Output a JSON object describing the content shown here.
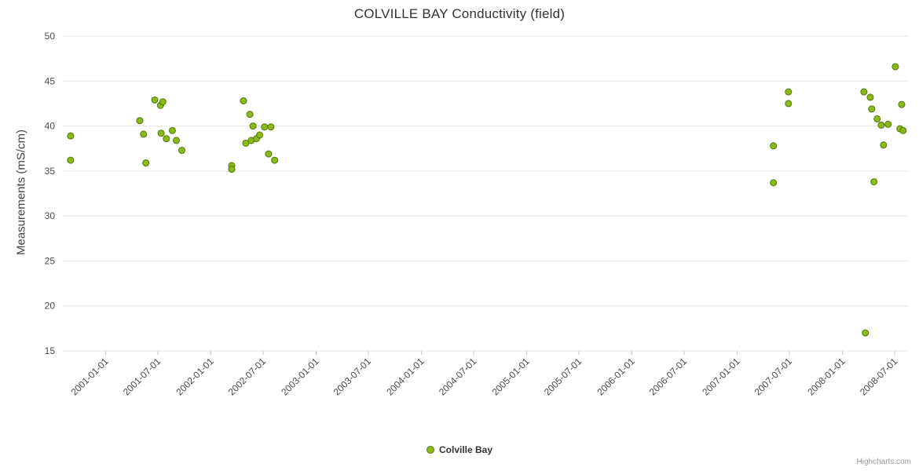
{
  "chart": {
    "credits": "Highcharts.com"
  },
  "legend": {
    "items": [
      {
        "label": "Colville Bay",
        "color": "#8aba17",
        "border": "#55770a"
      }
    ]
  },
  "chart_data": {
    "type": "scatter",
    "title": "COLVILLE BAY Conductivity (field)",
    "xlabel": "",
    "ylabel": "Measurements (mS/cm)",
    "xlim": [
      "2000-08-05",
      "2008-08-16"
    ],
    "ylim": [
      15,
      50
    ],
    "yticks": [
      15,
      20,
      25,
      30,
      35,
      40,
      45,
      50
    ],
    "xticks": [
      "2001-01-01",
      "2001-07-01",
      "2002-01-01",
      "2002-07-01",
      "2003-01-01",
      "2003-07-01",
      "2004-01-01",
      "2004-07-01",
      "2005-01-01",
      "2005-07-01",
      "2006-01-01",
      "2006-07-01",
      "2007-01-01",
      "2007-07-01",
      "2008-01-01",
      "2008-07-01"
    ],
    "grid": "horizontal",
    "legend_position": "bottom-center",
    "series": [
      {
        "name": "Colville Bay",
        "data": [
          [
            "2000-09-01",
            38.9
          ],
          [
            "2000-09-01",
            36.2
          ],
          [
            "2001-04-29",
            40.6
          ],
          [
            "2001-05-12",
            39.1
          ],
          [
            "2001-05-20",
            35.9
          ],
          [
            "2001-06-20",
            42.9
          ],
          [
            "2001-07-10",
            42.3
          ],
          [
            "2001-07-18",
            42.7
          ],
          [
            "2001-07-12",
            39.2
          ],
          [
            "2001-07-30",
            38.6
          ],
          [
            "2001-08-20",
            39.5
          ],
          [
            "2001-09-03",
            38.4
          ],
          [
            "2001-09-22",
            37.3
          ],
          [
            "2002-03-14",
            35.6
          ],
          [
            "2002-03-14",
            35.2
          ],
          [
            "2002-04-24",
            42.8
          ],
          [
            "2002-05-02",
            38.1
          ],
          [
            "2002-05-16",
            41.3
          ],
          [
            "2002-05-21",
            38.4
          ],
          [
            "2002-05-27",
            40.0
          ],
          [
            "2002-06-08",
            38.6
          ],
          [
            "2002-06-19",
            39.0
          ],
          [
            "2002-07-06",
            39.9
          ],
          [
            "2002-07-28",
            39.9
          ],
          [
            "2002-07-20",
            36.9
          ],
          [
            "2002-08-10",
            36.2
          ],
          [
            "2007-05-07",
            37.8
          ],
          [
            "2007-05-07",
            33.7
          ],
          [
            "2007-06-28",
            43.8
          ],
          [
            "2007-06-28",
            42.5
          ],
          [
            "2008-03-16",
            43.8
          ],
          [
            "2008-04-07",
            43.2
          ],
          [
            "2008-04-12",
            41.9
          ],
          [
            "2008-05-01",
            40.8
          ],
          [
            "2008-05-15",
            40.1
          ],
          [
            "2008-06-08",
            40.2
          ],
          [
            "2008-05-23",
            37.9
          ],
          [
            "2008-04-20",
            33.8
          ],
          [
            "2008-03-21",
            17.0
          ],
          [
            "2008-07-03",
            46.6
          ],
          [
            "2008-07-25",
            42.4
          ],
          [
            "2008-07-19",
            39.7
          ],
          [
            "2008-07-30",
            39.5
          ]
        ]
      }
    ],
    "colors": {
      "point": "#8aba17",
      "point_border": "#55770a",
      "grid": "#e6e6e6",
      "tick": "#c6c6c6",
      "tick_label": "#4a4a4a",
      "title": "#333333"
    }
  }
}
